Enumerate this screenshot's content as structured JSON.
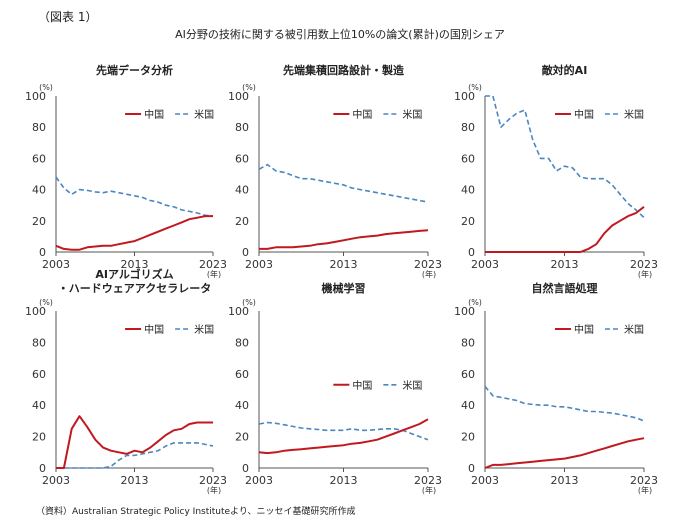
{
  "figure_label": "（図表 1）",
  "title": "AI分野の技術に関する被引用数上位10%の論文(累計)の国別シェア",
  "source": "（資料）Australian Strategic Policy Instituteより、ニッセイ基礎研究所作成",
  "colors": {
    "china": "#c0191f",
    "us": "#4a86c0"
  },
  "chart_data": [
    {
      "type": "line",
      "title_lines": [
        "先端データ分析"
      ],
      "x": [
        2003,
        2004,
        2005,
        2006,
        2007,
        2008,
        2009,
        2010,
        2011,
        2012,
        2013,
        2014,
        2015,
        2016,
        2017,
        2018,
        2019,
        2020,
        2021,
        2022,
        2023
      ],
      "series": [
        {
          "name": "中国",
          "values": [
            4,
            2,
            1.5,
            1.5,
            3,
            3.5,
            4,
            4,
            5,
            6,
            7,
            9,
            11,
            13,
            15,
            17,
            19,
            21,
            22,
            23,
            23
          ]
        },
        {
          "name": "米国",
          "values": [
            48,
            41,
            37,
            40,
            39.5,
            38.5,
            38,
            39,
            38,
            37,
            36,
            35,
            33,
            32,
            30,
            29,
            27,
            26,
            25,
            23.5,
            23
          ]
        }
      ],
      "ylim": [
        0,
        100
      ],
      "yticks": [
        0,
        20,
        40,
        60,
        80,
        100
      ],
      "xticks": [
        2003,
        2013,
        2023
      ],
      "ylabel": "(%)",
      "xunit": "(年)",
      "legend": "top"
    },
    {
      "type": "line",
      "title_lines": [
        "先端集積回路設計・製造"
      ],
      "x": [
        2003,
        2004,
        2005,
        2006,
        2007,
        2008,
        2009,
        2010,
        2011,
        2012,
        2013,
        2014,
        2015,
        2016,
        2017,
        2018,
        2019,
        2020,
        2021,
        2022,
        2023
      ],
      "series": [
        {
          "name": "中国",
          "values": [
            2,
            2,
            3,
            3,
            3,
            3.5,
            4,
            5,
            5.5,
            6.5,
            7.5,
            8.5,
            9.5,
            10,
            10.5,
            11.5,
            12,
            12.5,
            13,
            13.5,
            14
          ]
        },
        {
          "name": "米国",
          "values": [
            53,
            56,
            52,
            51,
            49,
            47,
            47,
            46,
            45,
            44,
            43,
            41,
            40,
            39,
            38,
            37,
            36,
            35,
            34,
            33,
            32
          ]
        }
      ],
      "ylim": [
        0,
        100
      ],
      "yticks": [
        0,
        20,
        40,
        60,
        80,
        100
      ],
      "xticks": [
        2003,
        2013,
        2023
      ],
      "ylabel": "(%)",
      "xunit": "(年)",
      "legend": "top"
    },
    {
      "type": "line",
      "title_lines": [
        "敵対的AI"
      ],
      "x": [
        2003,
        2004,
        2005,
        2006,
        2007,
        2008,
        2009,
        2010,
        2011,
        2012,
        2013,
        2014,
        2015,
        2016,
        2017,
        2018,
        2019,
        2020,
        2021,
        2022,
        2023
      ],
      "series": [
        {
          "name": "中国",
          "values": [
            0,
            0,
            0,
            0,
            0,
            0,
            0,
            0,
            0,
            0,
            0,
            0,
            0,
            2,
            5,
            12,
            17,
            20,
            23,
            25,
            29
          ]
        },
        {
          "name": "米国",
          "values": [
            100,
            100,
            80,
            85,
            89,
            91,
            72,
            60,
            60,
            52,
            55,
            54,
            48,
            47,
            47,
            47,
            43,
            37,
            31,
            27,
            22
          ]
        }
      ],
      "ylim": [
        0,
        100
      ],
      "yticks": [
        0,
        20,
        40,
        60,
        80,
        100
      ],
      "xticks": [
        2003,
        2013,
        2023
      ],
      "ylabel": "(%)",
      "xunit": "(年)",
      "legend": "top"
    },
    {
      "type": "line",
      "title_lines": [
        "AIアルゴリズム",
        "・ハードウェアアクセラレータ"
      ],
      "x": [
        2003,
        2004,
        2005,
        2006,
        2007,
        2008,
        2009,
        2010,
        2011,
        2012,
        2013,
        2014,
        2015,
        2016,
        2017,
        2018,
        2019,
        2020,
        2021,
        2022,
        2023
      ],
      "series": [
        {
          "name": "中国",
          "values": [
            0,
            0,
            25,
            33,
            26,
            18,
            13,
            11,
            10,
            9,
            11,
            10,
            13,
            17,
            21,
            24,
            25,
            28,
            29,
            29,
            29
          ]
        },
        {
          "name": "米国",
          "values": [
            0,
            0,
            0,
            0,
            0,
            0,
            0,
            1,
            5,
            8,
            8,
            9,
            10,
            11,
            14,
            16,
            16,
            16,
            16,
            15,
            14
          ]
        }
      ],
      "ylim": [
        0,
        100
      ],
      "yticks": [
        0,
        20,
        40,
        60,
        80,
        100
      ],
      "xticks": [
        2003,
        2013,
        2023
      ],
      "ylabel": "(%)",
      "xunit": "(年)",
      "legend": "top"
    },
    {
      "type": "line",
      "title_lines": [
        "機械学習"
      ],
      "x": [
        2003,
        2004,
        2005,
        2006,
        2007,
        2008,
        2009,
        2010,
        2011,
        2012,
        2013,
        2014,
        2015,
        2016,
        2017,
        2018,
        2019,
        2020,
        2021,
        2022,
        2023
      ],
      "series": [
        {
          "name": "中国",
          "values": [
            10,
            9.5,
            10,
            11,
            11.5,
            12,
            12.5,
            13,
            13.5,
            14,
            14.5,
            15.5,
            16,
            17,
            18,
            20,
            22,
            24,
            26,
            28,
            31
          ]
        },
        {
          "name": "米国",
          "values": [
            28,
            29,
            28.5,
            27.5,
            26.5,
            25.5,
            25,
            24.5,
            24,
            24,
            24,
            25,
            24,
            24,
            24.5,
            25,
            25,
            24,
            22,
            20,
            18
          ]
        }
      ],
      "ylim": [
        0,
        100
      ],
      "yticks": [
        0,
        20,
        40,
        60,
        80,
        100
      ],
      "xticks": [
        2003,
        2013,
        2023
      ],
      "ylabel": "(%)",
      "xunit": "(年)",
      "legend": "middle"
    },
    {
      "type": "line",
      "title_lines": [
        "自然言語処理"
      ],
      "x": [
        2003,
        2004,
        2005,
        2006,
        2007,
        2008,
        2009,
        2010,
        2011,
        2012,
        2013,
        2014,
        2015,
        2016,
        2017,
        2018,
        2019,
        2020,
        2021,
        2022,
        2023
      ],
      "series": [
        {
          "name": "中国",
          "values": [
            0,
            2,
            2,
            2.5,
            3,
            3.5,
            4,
            4.5,
            5,
            5.5,
            6,
            7,
            8,
            9.5,
            11,
            12.5,
            14,
            15.5,
            17,
            18,
            19
          ]
        },
        {
          "name": "米国",
          "values": [
            52,
            46,
            45,
            44,
            43,
            41,
            40.5,
            40,
            40,
            39,
            39,
            38,
            37,
            36,
            36,
            35.5,
            35,
            34,
            33,
            32,
            30
          ]
        }
      ],
      "ylim": [
        0,
        100
      ],
      "yticks": [
        0,
        20,
        40,
        60,
        80,
        100
      ],
      "xticks": [
        2003,
        2013,
        2023
      ],
      "ylabel": "(%)",
      "xunit": "(年)",
      "legend": "top"
    }
  ]
}
